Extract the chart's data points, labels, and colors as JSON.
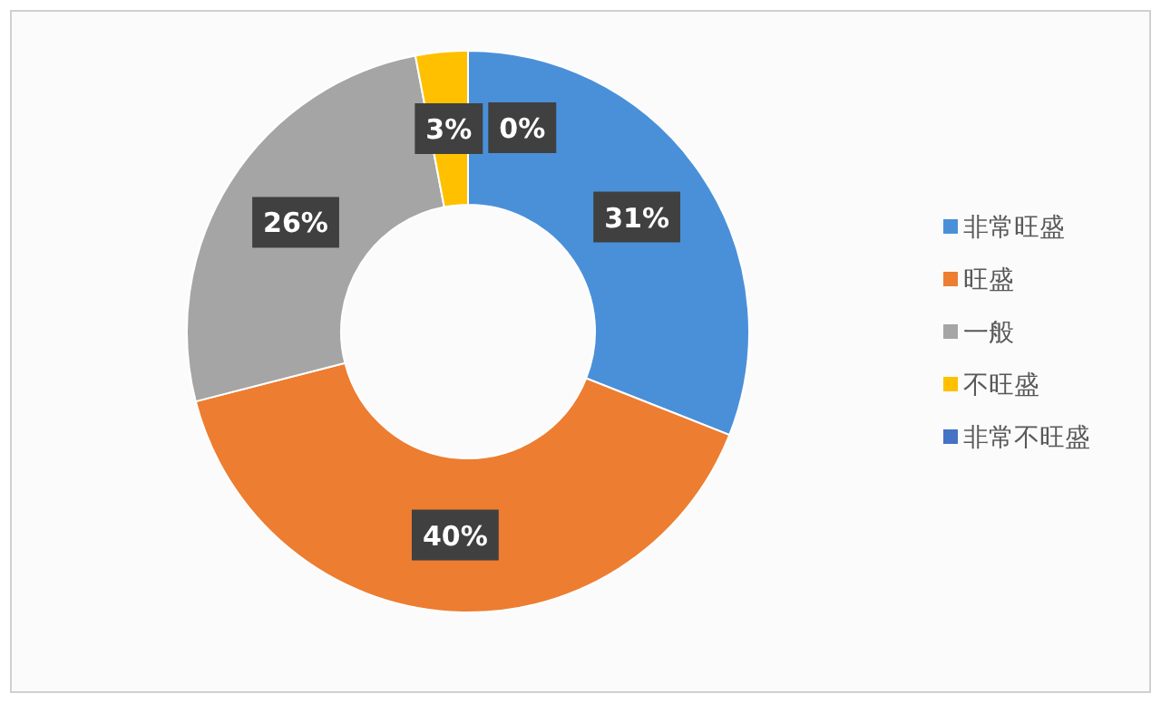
{
  "chart_data": {
    "type": "donut",
    "categories": [
      "非常旺盛",
      "旺盛",
      "一般",
      "不旺盛",
      "非常不旺盛"
    ],
    "values": [
      31,
      40,
      26,
      3,
      0
    ],
    "colors": [
      "#4a90d9",
      "#ed7d31",
      "#a5a5a5",
      "#ffc000",
      "#4472c4"
    ],
    "value_labels": [
      "31%",
      "40%",
      "26%",
      "3%",
      "0%"
    ],
    "legend": "right"
  }
}
